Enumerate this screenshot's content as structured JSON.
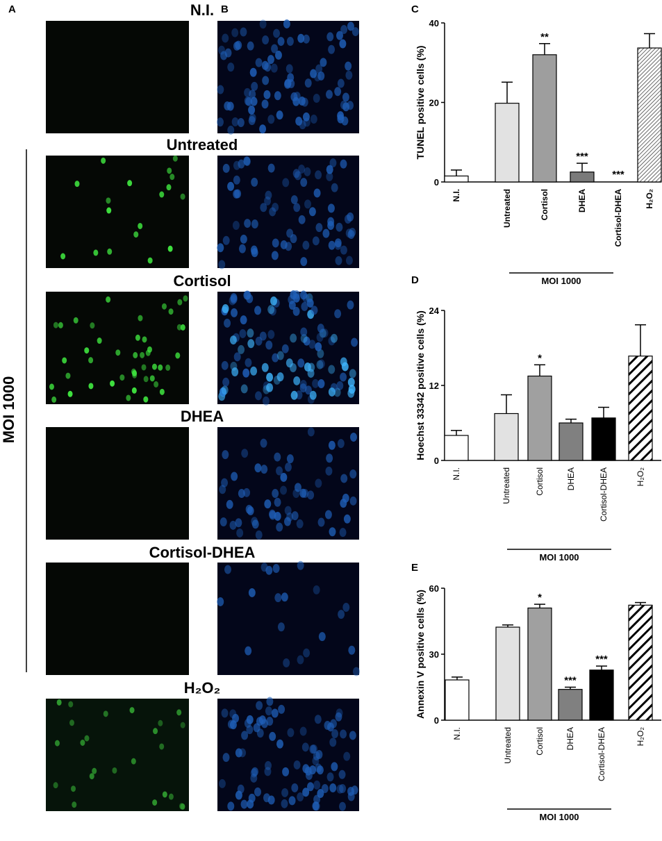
{
  "figure": {
    "panel_labels": [
      "A",
      "B",
      "C",
      "D",
      "E"
    ],
    "micrograph_rows": [
      "N.I.",
      "Untreated",
      "Cortisol",
      "DHEA",
      "Cortisol-DHEA",
      "H₂O₂"
    ],
    "group_label": "MOI 1000"
  },
  "chart_data": [
    {
      "type": "bar",
      "ylabel": "TUNEL positive cells (%)",
      "categories": [
        "N.I.",
        "Untreated",
        "Cortisol",
        "DHEA",
        "Cortisol-DHEA",
        "H₂O₂"
      ],
      "values": [
        1.5,
        19.8,
        32,
        2.5,
        0,
        33.7
      ],
      "errors": [
        1.5,
        5.3,
        2.8,
        2.2,
        null,
        3.6
      ],
      "annotations": [
        null,
        null,
        "**",
        "***",
        "***",
        null
      ],
      "colors": [
        "#ffffff",
        "#e2e2e2",
        "#9e9e9e",
        "#7a7a7a",
        "#000000",
        "#ffffff"
      ],
      "hatch": [
        null,
        null,
        null,
        null,
        null,
        "fine"
      ],
      "ylim": [
        0,
        40
      ],
      "yticks": [
        0,
        20,
        40
      ],
      "group_label": "MOI 1000"
    },
    {
      "type": "bar",
      "ylabel": "Hoechst 33342 positive cells (%)",
      "categories": [
        "N.I.",
        "Untreated",
        "Cortisol",
        "DHEA",
        "Cortisol-DHEA",
        "H₂O₂"
      ],
      "values": [
        4,
        7.5,
        13.5,
        6,
        6.8,
        16.7
      ],
      "errors": [
        0.8,
        3,
        1.8,
        0.6,
        1.7,
        5
      ],
      "annotations": [
        null,
        null,
        "*",
        null,
        null,
        null
      ],
      "colors": [
        "#ffffff",
        "#e2e2e2",
        "#a0a0a0",
        "#808080",
        "#000000",
        "#ffffff"
      ],
      "hatch": [
        null,
        null,
        null,
        null,
        null,
        "bold"
      ],
      "ylim": [
        0,
        24
      ],
      "yticks": [
        0,
        12,
        24
      ],
      "group_label": "MOI 1000"
    },
    {
      "type": "bar",
      "ylabel": "Annexin V positive cells (%)",
      "categories": [
        "N.I.",
        "Untreated",
        "Cortisol",
        "DHEA",
        "Cortisol-DHEA",
        "H₂O₂"
      ],
      "values": [
        18.3,
        42.3,
        51,
        14,
        22.8,
        52.3
      ],
      "errors": [
        1.3,
        1,
        1.7,
        1,
        1.8,
        1.2
      ],
      "annotations": [
        null,
        null,
        "*",
        "***",
        "***",
        null
      ],
      "colors": [
        "#ffffff",
        "#e2e2e2",
        "#a0a0a0",
        "#808080",
        "#000000",
        "#ffffff"
      ],
      "hatch": [
        null,
        null,
        null,
        null,
        null,
        "bold"
      ],
      "ylim": [
        0,
        60
      ],
      "yticks": [
        0,
        30,
        60
      ],
      "group_label": "MOI 1000"
    }
  ]
}
